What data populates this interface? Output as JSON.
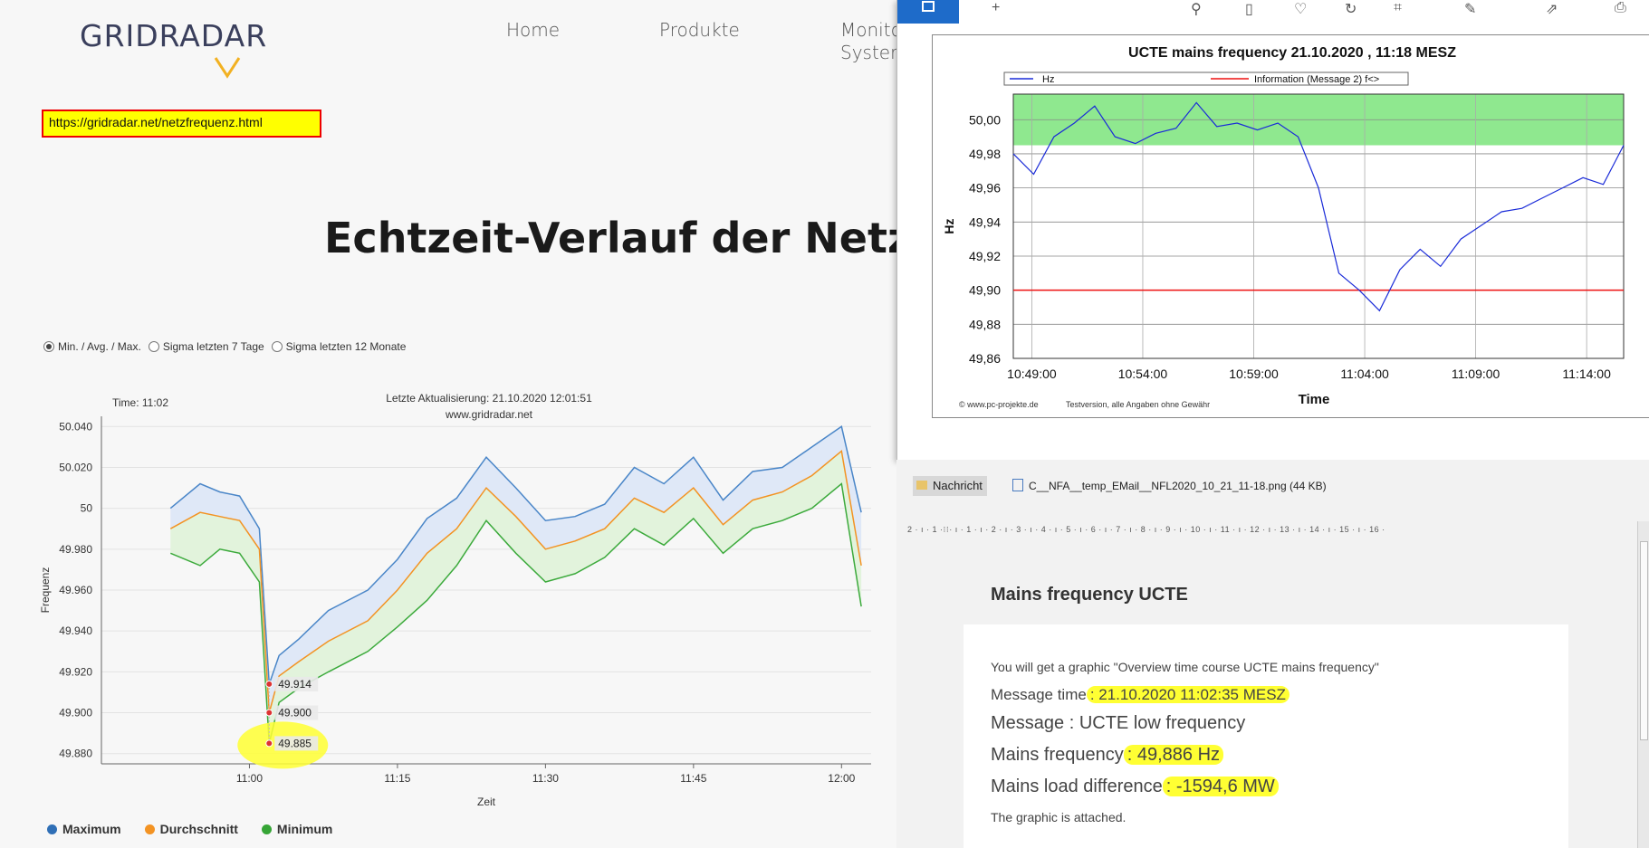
{
  "site": {
    "logo": "GRIDRADAR",
    "nav": [
      "Home",
      "Produkte",
      "Monito",
      "Syster"
    ],
    "url_annotation": "https://gridradar.net/netzfrequenz.html",
    "headline": "Echtzeit-Verlauf der Netzfre",
    "radio_options": [
      {
        "label": "Min. / Avg. / Max.",
        "selected": true
      },
      {
        "label": "Sigma letzten 7 Tage",
        "selected": false
      },
      {
        "label": "Sigma letzten 12 Monate",
        "selected": false
      }
    ],
    "chart": {
      "time_label": "Time: 11:02",
      "update_label": "Letzte Aktualisierung: 21.10.2020 12:01:51",
      "source_label": "www.gridradar.net",
      "ylabel": "Frequenz",
      "xlabel": "Zeit",
      "yticks": [
        "50.040",
        "50.020",
        "50",
        "49.980",
        "49.960",
        "49.940",
        "49.920",
        "49.900",
        "49.880"
      ],
      "xticks": [
        "11:00",
        "11:15",
        "11:30",
        "11:45",
        "12:00"
      ],
      "tooltip_values": [
        "49.914",
        "49.900",
        "49.885"
      ],
      "colors": {
        "max": "#4a86c8",
        "avg": "#f39323",
        "min": "#3caa3c"
      }
    },
    "legend": [
      {
        "label": "Maximum",
        "color": "#2f6fb6"
      },
      {
        "label": "Durchschnitt",
        "color": "#f39323"
      },
      {
        "label": "Minimum",
        "color": "#36a536"
      }
    ]
  },
  "popup": {
    "title": "UCTE mains frequency  21.10.2020 , 11:18 MESZ",
    "legend_hz": "Hz",
    "legend_info": "Information (Message 2) f<>",
    "ylabel": "Hz",
    "xlabel": "Time",
    "yticks": [
      "50,00",
      "49,98",
      "49,96",
      "49,94",
      "49,92",
      "49,90",
      "49,88",
      "49,86"
    ],
    "xticks": [
      "10:49:00",
      "10:54:00",
      "10:59:00",
      "11:04:00",
      "11:09:00",
      "11:14:00"
    ],
    "footer_left": "© www.pc-projekte.de",
    "footer_right": "Testversion, alle Angaben ohne Gewähr",
    "colors": {
      "line": "#1a2bd8",
      "limit": "#e11",
      "band": "#8fe88f"
    }
  },
  "mail": {
    "tab_label": "Nachricht",
    "attachment": "C__NFA__temp_EMail__NFL2020_10_21_11-18.png (44 KB)",
    "ruler": "2 · ı · 1 ·⁝⁝· ı · 1 · ı · 2 · ı · 3 · ı · 4 · ı · 5 · ı · 6 · ı · 7 · ı · 8 · ı · 9 · ı · 10 · ı · 11 · ı · 12 · ı · 13 · ı · 14 · ı · 15 · ı · 16 ·",
    "title": "Mains frequency UCTE",
    "intro": "You will get a graphic \"Overview time course UCTE mains frequency\"",
    "msg_time_label": "Message time",
    "msg_time_value": ": 21.10.2020 11:02:35 MESZ",
    "message": "Message : UCTE low frequency",
    "freq_label": "Mains frequency",
    "freq_value": ": 49,886 Hz",
    "load_label": "Mains load difference",
    "load_value": ": -1594,6 MW",
    "footer": "The graphic is attached."
  },
  "chart_data": [
    {
      "type": "area",
      "title": "",
      "xlabel": "Zeit",
      "ylabel": "Frequenz",
      "x": [
        "10:52",
        "10:55",
        "10:57",
        "10:59",
        "11:01",
        "11:02",
        "11:03",
        "11:05",
        "11:08",
        "11:12",
        "11:15",
        "11:18",
        "11:21",
        "11:24",
        "11:27",
        "11:30",
        "11:33",
        "11:36",
        "11:39",
        "11:42",
        "11:45",
        "11:48",
        "11:51",
        "11:54",
        "11:57",
        "12:00",
        "12:02"
      ],
      "series": [
        {
          "name": "Maximum",
          "values": [
            50.0,
            50.012,
            50.008,
            50.006,
            49.99,
            49.914,
            49.928,
            49.936,
            49.95,
            49.96,
            49.975,
            49.995,
            50.005,
            50.025,
            50.01,
            49.994,
            49.996,
            50.002,
            50.02,
            50.012,
            50.025,
            50.004,
            50.018,
            50.02,
            50.03,
            50.04,
            49.998
          ]
        },
        {
          "name": "Durchschnitt",
          "values": [
            49.99,
            49.998,
            49.996,
            49.994,
            49.98,
            49.9,
            49.918,
            49.925,
            49.935,
            49.945,
            49.96,
            49.978,
            49.99,
            50.01,
            49.996,
            49.98,
            49.984,
            49.99,
            50.005,
            49.998,
            50.01,
            49.992,
            50.004,
            50.008,
            50.016,
            50.028,
            49.972
          ]
        },
        {
          "name": "Minimum",
          "values": [
            49.978,
            49.972,
            49.98,
            49.978,
            49.964,
            49.885,
            49.905,
            49.912,
            49.92,
            49.93,
            49.942,
            49.955,
            49.972,
            49.994,
            49.978,
            49.964,
            49.968,
            49.976,
            49.99,
            49.982,
            49.995,
            49.978,
            49.99,
            49.994,
            50.0,
            50.012,
            49.952
          ]
        }
      ],
      "ylim": [
        49.875,
        50.045
      ],
      "grid": true,
      "legend": "bottom"
    },
    {
      "type": "line",
      "title": "UCTE mains frequency  21.10.2020 , 11:18 MESZ",
      "xlabel": "Time",
      "ylabel": "Hz",
      "x": [
        0,
        1,
        2,
        3,
        4,
        5,
        6,
        7,
        8,
        9,
        10,
        11,
        12,
        13,
        14,
        15,
        16,
        17,
        18,
        19,
        20,
        21,
        22,
        23,
        24,
        25,
        26,
        27,
        28,
        29,
        30
      ],
      "x_ticks": [
        "10:49:00",
        "10:54:00",
        "10:59:00",
        "11:04:00",
        "11:09:00",
        "11:14:00"
      ],
      "series": [
        {
          "name": "Hz",
          "values": [
            49.98,
            49.968,
            49.99,
            49.998,
            50.008,
            49.99,
            49.986,
            49.992,
            49.995,
            50.01,
            49.996,
            49.998,
            49.994,
            49.998,
            49.99,
            49.96,
            49.91,
            49.9,
            49.888,
            49.912,
            49.924,
            49.914,
            49.93,
            49.938,
            49.946,
            49.948,
            49.954,
            49.96,
            49.966,
            49.962,
            49.985
          ]
        },
        {
          "name": "Information (Message 2) f<>",
          "values": [
            49.9,
            49.9,
            49.9,
            49.9,
            49.9,
            49.9,
            49.9,
            49.9,
            49.9,
            49.9,
            49.9,
            49.9,
            49.9,
            49.9,
            49.9,
            49.9,
            49.9,
            49.9,
            49.9,
            49.9,
            49.9,
            49.9,
            49.9,
            49.9,
            49.9,
            49.9,
            49.9,
            49.9,
            49.9,
            49.9,
            49.9
          ]
        }
      ],
      "band": [
        49.985,
        50.015
      ],
      "ylim": [
        49.86,
        50.015
      ],
      "grid": true,
      "legend": "top"
    }
  ]
}
